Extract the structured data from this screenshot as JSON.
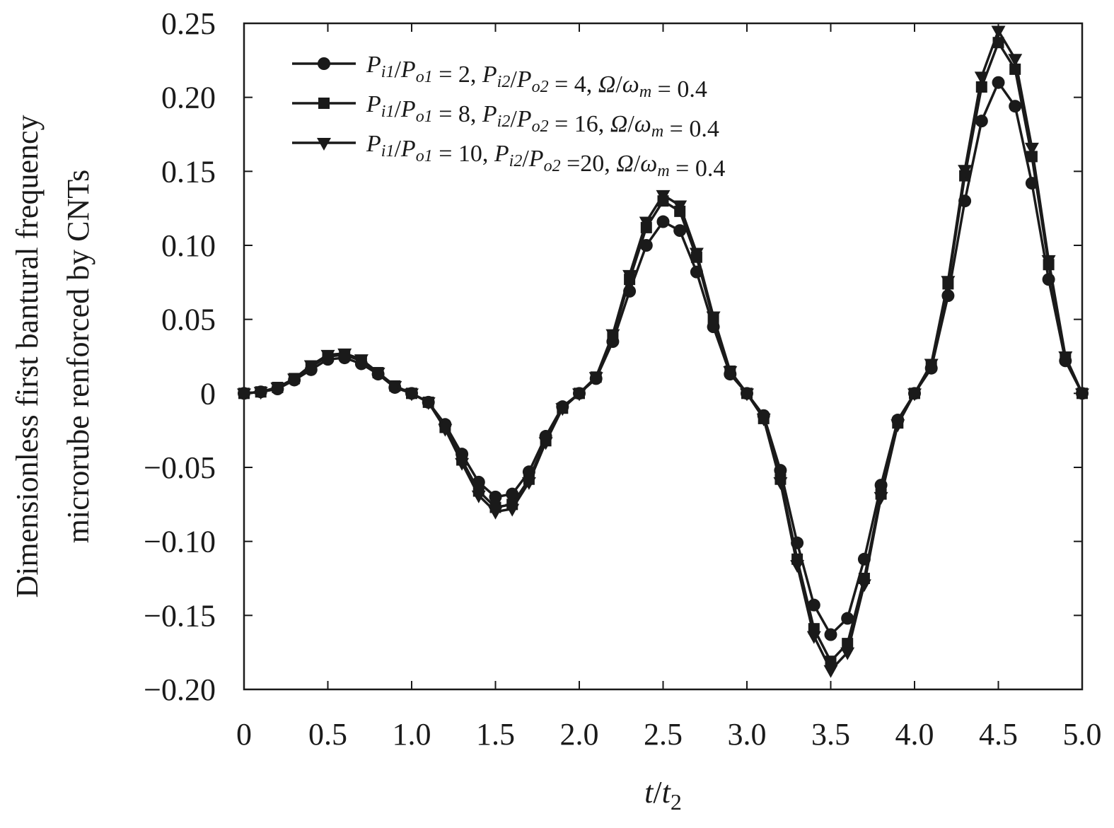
{
  "chart_data": {
    "type": "line",
    "xlabel": "t/t2",
    "ylabel_lines": [
      "Dimensionless first bantural frequency",
      "microrube renforced by CNTs"
    ],
    "xlim": [
      0,
      5.0
    ],
    "ylim": [
      -0.2,
      0.25
    ],
    "x_ticks": [
      0,
      0.5,
      1.0,
      1.5,
      2.0,
      2.5,
      3.0,
      3.5,
      4.0,
      4.5,
      5.0
    ],
    "x_tick_labels": [
      "0",
      "0.5",
      "1.0",
      "1.5",
      "2.0",
      "2.5",
      "3.0",
      "3.5",
      "4.0",
      "4.5",
      "5.0"
    ],
    "y_ticks": [
      -0.2,
      -0.15,
      -0.1,
      -0.05,
      0,
      0.05,
      0.1,
      0.15,
      0.2,
      0.25
    ],
    "y_tick_labels": [
      "−0.20",
      "−0.15",
      "−0.10",
      "−0.05",
      "0",
      "0.05",
      "0.10",
      "0.15",
      "0.20",
      "0.25"
    ],
    "grid": false,
    "legend_position": "top-left",
    "line_color": "#1a1a1a",
    "x": [
      0,
      0.1,
      0.2,
      0.3,
      0.4,
      0.5,
      0.6,
      0.7,
      0.8,
      0.9,
      1.0,
      1.1,
      1.2,
      1.3,
      1.4,
      1.5,
      1.6,
      1.7,
      1.8,
      1.9,
      2.0,
      2.1,
      2.2,
      2.3,
      2.4,
      2.5,
      2.6,
      2.7,
      2.8,
      2.9,
      3.0,
      3.1,
      3.2,
      3.3,
      3.4,
      3.5,
      3.6,
      3.7,
      3.8,
      3.9,
      4.0,
      4.1,
      4.2,
      4.3,
      4.4,
      4.5,
      4.6,
      4.7,
      4.8,
      4.9,
      5.0
    ],
    "series": [
      {
        "name": "P_i1/P_o1 = 2, P_i2/P_o2 = 4, Ω/ω_m = 0.4",
        "legend_parts": [
          {
            "t": "P",
            "i": true
          },
          {
            "t": "i1",
            "sub": true,
            "i": true
          },
          {
            "t": "/",
            "i": false
          },
          {
            "t": "P",
            "i": true
          },
          {
            "t": "o1",
            "sub": true,
            "i": true
          },
          {
            "t": " = 2, ",
            "i": false
          },
          {
            "t": "P",
            "i": true
          },
          {
            "t": "i2",
            "sub": true,
            "i": true
          },
          {
            "t": "/",
            "i": false
          },
          {
            "t": "P",
            "i": true
          },
          {
            "t": "o2",
            "sub": true,
            "i": true
          },
          {
            "t": " = 4, ",
            "i": false
          },
          {
            "t": "Ω",
            "i": true
          },
          {
            "t": "/",
            "i": false
          },
          {
            "t": "ω",
            "i": true
          },
          {
            "t": "m",
            "sub": true,
            "i": true
          },
          {
            "t": " = 0.4",
            "i": false
          }
        ],
        "marker": "circle",
        "values": [
          0,
          0.001,
          0.003,
          0.009,
          0.016,
          0.023,
          0.024,
          0.02,
          0.013,
          0.004,
          0.0,
          -0.006,
          -0.021,
          -0.041,
          -0.06,
          -0.07,
          -0.068,
          -0.053,
          -0.029,
          -0.009,
          0.0,
          0.01,
          0.035,
          0.069,
          0.1,
          0.116,
          0.11,
          0.082,
          0.045,
          0.013,
          0.0,
          -0.015,
          -0.052,
          -0.101,
          -0.143,
          -0.163,
          -0.152,
          -0.112,
          -0.062,
          -0.018,
          0.0,
          0.017,
          0.066,
          0.13,
          0.184,
          0.21,
          0.194,
          0.142,
          0.077,
          0.022,
          0
        ]
      },
      {
        "name": "P_i1/P_o1 = 8, P_i2/P_o2 = 16, Ω/ω_m = 0.4",
        "legend_parts": [
          {
            "t": "P",
            "i": true
          },
          {
            "t": "i1",
            "sub": true,
            "i": true
          },
          {
            "t": "/",
            "i": false
          },
          {
            "t": "P",
            "i": true
          },
          {
            "t": "o1",
            "sub": true,
            "i": true
          },
          {
            "t": " = 8, ",
            "i": false
          },
          {
            "t": "P",
            "i": true
          },
          {
            "t": "i2",
            "sub": true,
            "i": true
          },
          {
            "t": "/",
            "i": false
          },
          {
            "t": "P",
            "i": true
          },
          {
            "t": "o2",
            "sub": true,
            "i": true
          },
          {
            "t": " = 16, ",
            "i": false
          },
          {
            "t": "Ω",
            "i": true
          },
          {
            "t": "/",
            "i": false
          },
          {
            "t": "ω",
            "i": true
          },
          {
            "t": "m",
            "sub": true,
            "i": true
          },
          {
            "t": " = 0.4",
            "i": false
          }
        ],
        "marker": "square",
        "values": [
          0,
          0.001,
          0.004,
          0.01,
          0.018,
          0.025,
          0.026,
          0.022,
          0.014,
          0.005,
          0.0,
          -0.006,
          -0.023,
          -0.045,
          -0.066,
          -0.077,
          -0.075,
          -0.058,
          -0.032,
          -0.01,
          0.0,
          0.011,
          0.038,
          0.077,
          0.112,
          0.13,
          0.123,
          0.092,
          0.05,
          0.015,
          0.0,
          -0.017,
          -0.058,
          -0.112,
          -0.159,
          -0.181,
          -0.169,
          -0.125,
          -0.068,
          -0.02,
          0.0,
          0.019,
          0.074,
          0.147,
          0.207,
          0.237,
          0.219,
          0.16,
          0.087,
          0.024,
          0
        ]
      },
      {
        "name": "P_i1/P_o1 = 10, P_i2/P_o2 =20, Ω/ω_m = 0.4",
        "legend_parts": [
          {
            "t": "P",
            "i": true
          },
          {
            "t": "i1",
            "sub": true,
            "i": true
          },
          {
            "t": "/",
            "i": false
          },
          {
            "t": "P",
            "i": true
          },
          {
            "t": "o1",
            "sub": true,
            "i": true
          },
          {
            "t": " = 10, ",
            "i": false
          },
          {
            "t": "P",
            "i": true
          },
          {
            "t": "i2",
            "sub": true,
            "i": true
          },
          {
            "t": "/",
            "i": false
          },
          {
            "t": "P",
            "i": true
          },
          {
            "t": "o2",
            "sub": true,
            "i": true
          },
          {
            "t": " =20, ",
            "i": false
          },
          {
            "t": "Ω",
            "i": true
          },
          {
            "t": "/",
            "i": false
          },
          {
            "t": "ω",
            "i": true
          },
          {
            "t": "m",
            "sub": true,
            "i": true
          },
          {
            "t": " = 0.4",
            "i": false
          }
        ],
        "marker": "triangle-down",
        "values": [
          0,
          0.001,
          0.004,
          0.01,
          0.019,
          0.026,
          0.027,
          0.023,
          0.014,
          0.005,
          0.0,
          -0.006,
          -0.024,
          -0.047,
          -0.069,
          -0.08,
          -0.078,
          -0.06,
          -0.033,
          -0.01,
          0.0,
          0.011,
          0.04,
          0.08,
          0.116,
          0.134,
          0.127,
          0.095,
          0.052,
          0.015,
          0.0,
          -0.017,
          -0.06,
          -0.116,
          -0.164,
          -0.187,
          -0.175,
          -0.129,
          -0.07,
          -0.021,
          0.0,
          0.02,
          0.076,
          0.151,
          0.214,
          0.245,
          0.226,
          0.166,
          0.09,
          0.025,
          0
        ]
      }
    ]
  }
}
